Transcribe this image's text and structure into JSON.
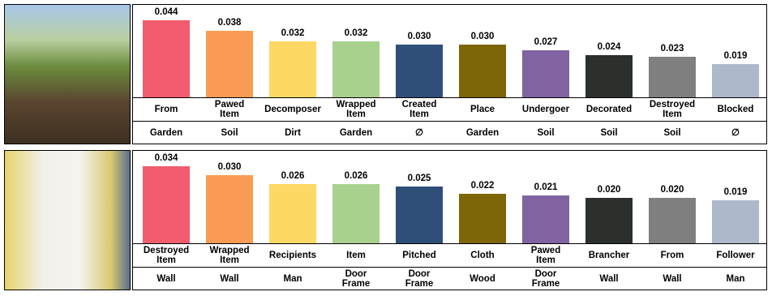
{
  "chart_data": [
    {
      "type": "bar",
      "categories": [
        "From",
        "Pawed\nItem",
        "Decomposer",
        "Wrapped\nItem",
        "Created\nItem",
        "Place",
        "Undergoer",
        "Decorated",
        "Destroyed\nItem",
        "Blocked"
      ],
      "fillers": [
        "Garden",
        "Soil",
        "Dirt",
        "Garden",
        "∅",
        "Garden",
        "Soil",
        "Soil",
        "Soil",
        "∅"
      ],
      "values": [
        0.044,
        0.038,
        0.032,
        0.032,
        0.03,
        0.03,
        0.027,
        0.024,
        0.023,
        0.019
      ],
      "value_labels": [
        "0.044",
        "0.038",
        "0.032",
        "0.032",
        "0.030",
        "0.030",
        "0.027",
        "0.024",
        "0.023",
        "0.019"
      ],
      "colors": [
        "#f25c6e",
        "#f99b54",
        "#fcd864",
        "#a9d18e",
        "#2f4e78",
        "#7d6608",
        "#8064a2",
        "#2b302d",
        "#7f7f7f",
        "#adb9ca"
      ]
    },
    {
      "type": "bar",
      "categories": [
        "Destroyed\nItem",
        "Wrapped\nItem",
        "Recipients",
        "Item",
        "Pitched",
        "Cloth",
        "Pawed\nItem",
        "Brancher",
        "From",
        "Follower"
      ],
      "fillers": [
        "Wall",
        "Wall",
        "Man",
        "Door\nFrame",
        "Door\nFrame",
        "Wood",
        "Door\nFrame",
        "Wall",
        "Wall",
        "Man"
      ],
      "values": [
        0.034,
        0.03,
        0.026,
        0.026,
        0.025,
        0.022,
        0.021,
        0.02,
        0.02,
        0.019
      ],
      "value_labels": [
        "0.034",
        "0.030",
        "0.026",
        "0.026",
        "0.025",
        "0.022",
        "0.021",
        "0.020",
        "0.020",
        "0.019"
      ],
      "colors": [
        "#f25c6e",
        "#f99b54",
        "#fcd864",
        "#a9d18e",
        "#2f4e78",
        "#7d6608",
        "#8064a2",
        "#2b302d",
        "#7f7f7f",
        "#adb9ca"
      ]
    }
  ]
}
